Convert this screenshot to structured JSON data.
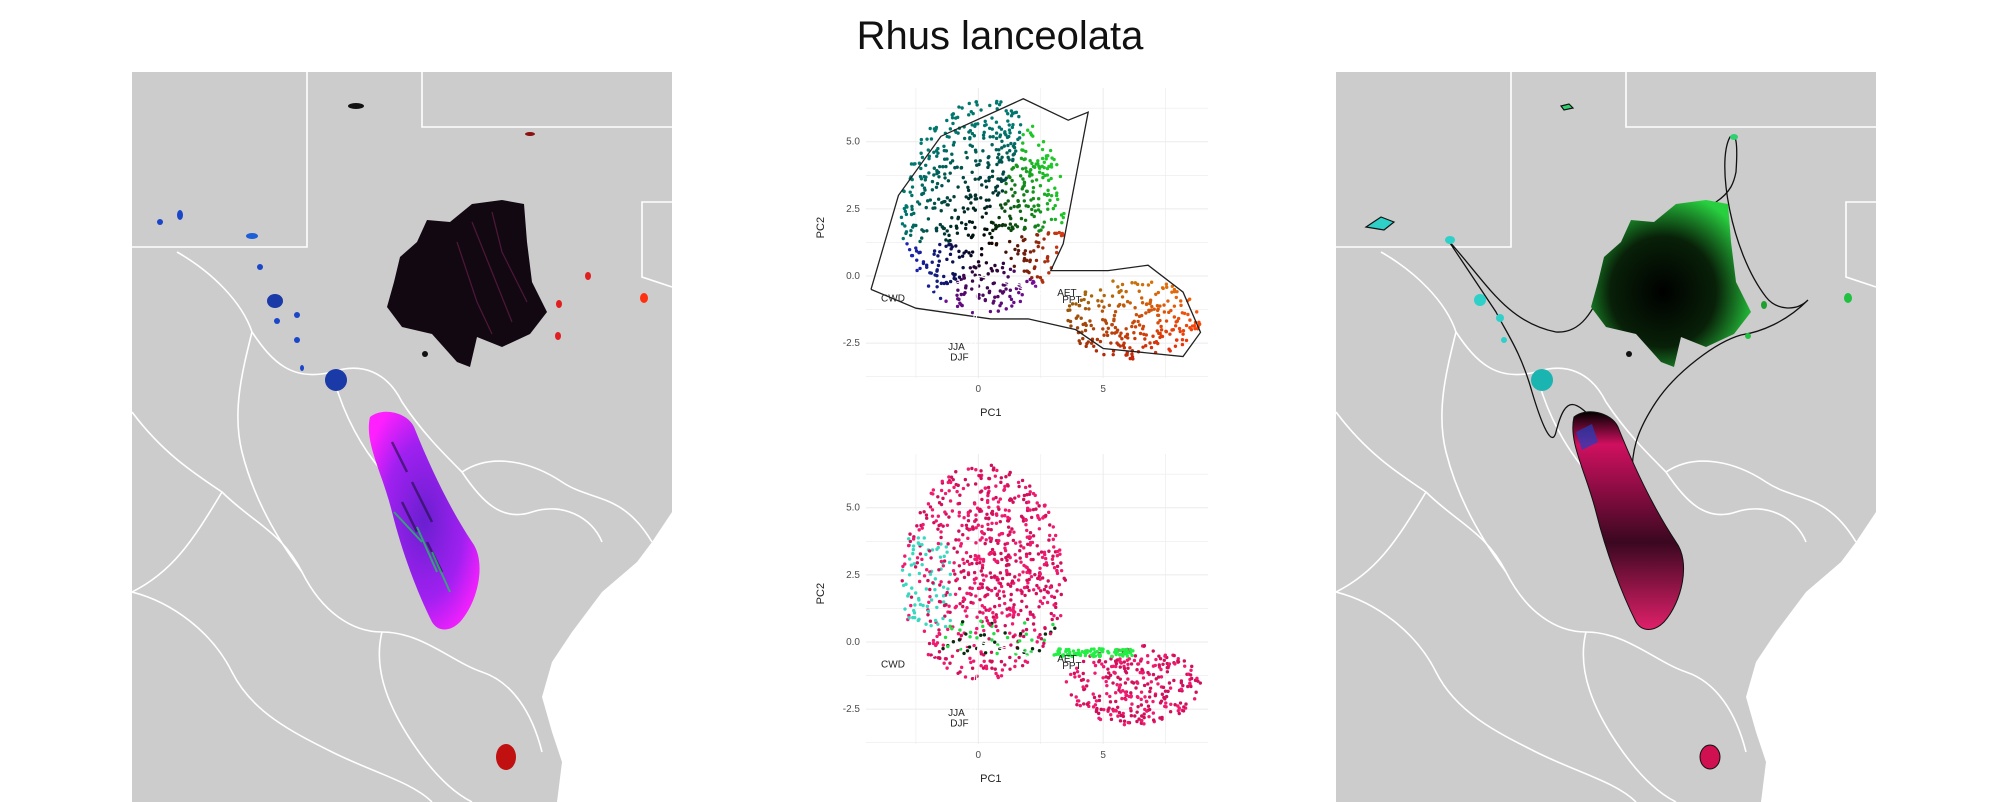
{
  "title": "Rhus lanceolata",
  "colors": {
    "land": "#cccccc",
    "border": "#ffffff",
    "background": "#ffffff",
    "grid": "#ebebeb"
  },
  "maps": [
    {
      "name": "left-map",
      "content": "species range colored by climate niche (RGB)"
    },
    {
      "name": "right-map",
      "content": "niche distance surface with connecting outlines"
    }
  ],
  "chart_data": [
    {
      "type": "scatter",
      "name": "pca-niche-gradient",
      "xlabel": "PC1",
      "ylabel": "PC2",
      "x_ticks": [
        0,
        5
      ],
      "y_ticks": [
        -2.5,
        0.0,
        2.5,
        5.0
      ],
      "xlim": [
        -4.5,
        9.2
      ],
      "ylim": [
        -3.8,
        7.0
      ],
      "grid": true,
      "vectors": [
        {
          "label": "CWD",
          "x": -2.7,
          "y": -0.8
        },
        {
          "label": "AET",
          "x": 3.0,
          "y": -0.6
        },
        {
          "label": "PPT",
          "x": 3.2,
          "y": -0.85
        },
        {
          "label": "JJA",
          "x": -0.3,
          "y": -2.6
        },
        {
          "label": "DJF",
          "x": -0.15,
          "y": -3.0
        }
      ]
    },
    {
      "type": "scatter",
      "name": "pca-niche-clusters",
      "xlabel": "PC1",
      "ylabel": "PC2",
      "x_ticks": [
        0,
        5
      ],
      "y_ticks": [
        -2.5,
        0.0,
        2.5,
        5.0
      ],
      "xlim": [
        -4.5,
        9.2
      ],
      "ylim": [
        -3.8,
        7.0
      ],
      "grid": true,
      "vectors": [
        {
          "label": "CWD",
          "x": -2.7,
          "y": -0.8
        },
        {
          "label": "AET",
          "x": 3.0,
          "y": -0.6
        },
        {
          "label": "PPT",
          "x": 3.2,
          "y": -0.85
        },
        {
          "label": "JJA",
          "x": -0.3,
          "y": -2.6
        },
        {
          "label": "DJF",
          "x": -0.15,
          "y": -3.0
        }
      ]
    }
  ]
}
